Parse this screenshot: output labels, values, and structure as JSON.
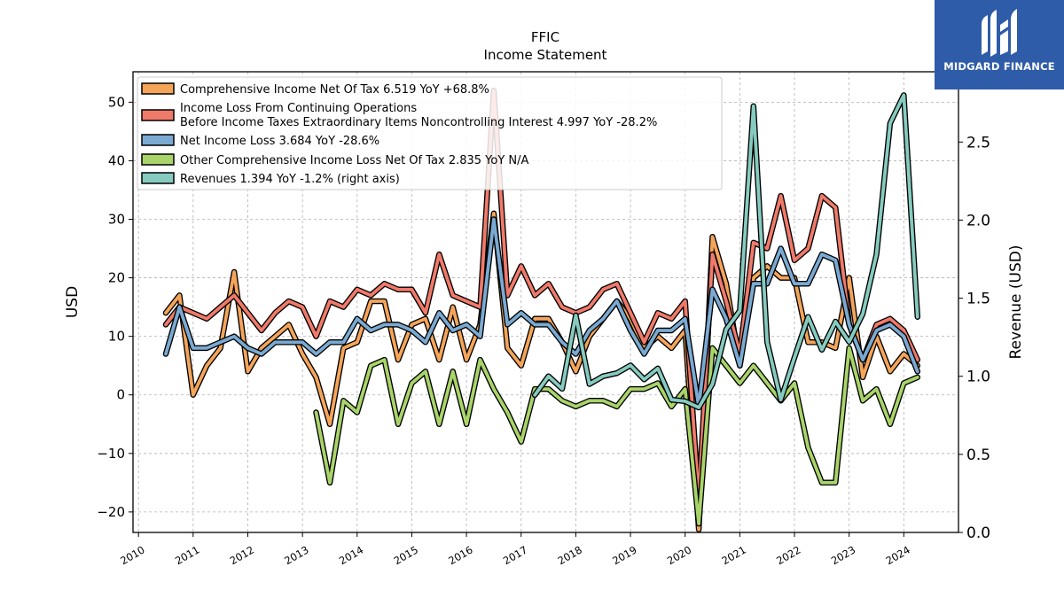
{
  "header": {
    "ticker": "FFIC",
    "subtitle": "Income Statement"
  },
  "brand": {
    "name": "MIDGARD FINANCE",
    "color": "#2f5ca8",
    "icon": "midgard-logo-icon"
  },
  "chart_data": {
    "type": "line",
    "title": "FFIC",
    "subtitle": "Income Statement",
    "ylabel": "USD",
    "y2label": "Revenue (USD)",
    "ylim": [
      -23.5,
      55.2
    ],
    "y2lim": [
      0.0,
      2.95
    ],
    "xlim": [
      2009.9,
      2025.0
    ],
    "grid": true,
    "legend_position": "top-left",
    "yticks": [
      -20,
      -10,
      0,
      10,
      20,
      30,
      40,
      50
    ],
    "ytick_labels": [
      "−20",
      "−10",
      "0",
      "10",
      "20",
      "30",
      "40",
      "50"
    ],
    "y2ticks": [
      0.0,
      0.5,
      1.0,
      1.5,
      2.0,
      2.5
    ],
    "y2tick_labels": [
      "0.0",
      "0.5",
      "1.0",
      "1.5",
      "2.0",
      "2.5"
    ],
    "xticks": [
      2010,
      2011,
      2012,
      2013,
      2014,
      2015,
      2016,
      2017,
      2018,
      2019,
      2020,
      2021,
      2022,
      2023,
      2024
    ],
    "xtick_labels": [
      "2010",
      "2011",
      "2012",
      "2013",
      "2014",
      "2015",
      "2016",
      "2017",
      "2018",
      "2019",
      "2020",
      "2021",
      "2022",
      "2023",
      "2024"
    ],
    "series": [
      {
        "name": "Comprehensive Income Net Of Tax",
        "legend_label": "Comprehensive Income Net Of Tax  6.519 YoY +68.8%",
        "color": "#f5a55a",
        "axis": "left",
        "x": [
          2010.5,
          2010.75,
          2011.0,
          2011.25,
          2011.5,
          2011.75,
          2012.0,
          2012.25,
          2012.5,
          2012.75,
          2013.0,
          2013.25,
          2013.5,
          2013.75,
          2014.0,
          2014.25,
          2014.5,
          2014.75,
          2015.0,
          2015.25,
          2015.5,
          2015.75,
          2016.0,
          2016.25,
          2016.5,
          2016.75,
          2017.0,
          2017.25,
          2017.5,
          2017.75,
          2018.0,
          2018.25,
          2018.5,
          2018.75,
          2019.0,
          2019.25,
          2019.5,
          2019.75,
          2020.0,
          2020.25,
          2020.5,
          2020.75,
          2021.0,
          2021.25,
          2021.5,
          2021.75,
          2022.0,
          2022.25,
          2022.5,
          2022.75,
          2023.0,
          2023.25,
          2023.5,
          2023.75,
          2024.0,
          2024.25
        ],
        "y": [
          14,
          17,
          0,
          5,
          8,
          21,
          4,
          8,
          10,
          12,
          7,
          3,
          -5,
          8,
          9,
          16,
          16,
          6,
          12,
          13,
          6,
          15,
          6,
          12,
          31,
          8,
          5,
          13,
          13,
          9,
          4,
          10,
          13,
          16,
          13,
          8,
          10,
          8,
          11,
          -23,
          27,
          19,
          5,
          20,
          22,
          20,
          20,
          9,
          9,
          8,
          20,
          3,
          10,
          4,
          7,
          5
        ]
      },
      {
        "name": "Income Loss From Continuing Operations Before Income Taxes Extraordinary Items Noncontrolling Interest",
        "legend_label_line1": "Income Loss From Continuing Operations",
        "legend_label_line2": "Before Income Taxes Extraordinary Items Noncontrolling Interest  4.997 YoY -28.2%",
        "color": "#f07a6a",
        "axis": "left",
        "x": [
          2010.5,
          2010.75,
          2011.0,
          2011.25,
          2011.5,
          2011.75,
          2012.0,
          2012.25,
          2012.5,
          2012.75,
          2013.0,
          2013.25,
          2013.5,
          2013.75,
          2014.0,
          2014.25,
          2014.5,
          2014.75,
          2015.0,
          2015.25,
          2015.5,
          2015.75,
          2016.0,
          2016.25,
          2016.5,
          2016.75,
          2017.0,
          2017.25,
          2017.5,
          2017.75,
          2018.0,
          2018.25,
          2018.5,
          2018.75,
          2019.0,
          2019.25,
          2019.5,
          2019.75,
          2020.0,
          2020.25,
          2020.5,
          2020.75,
          2021.0,
          2021.25,
          2021.5,
          2021.75,
          2022.0,
          2022.25,
          2022.5,
          2022.75,
          2023.0,
          2023.25,
          2023.5,
          2023.75,
          2024.0,
          2024.25
        ],
        "y": [
          12,
          15,
          14,
          13,
          15,
          17,
          14,
          11,
          14,
          16,
          15,
          10,
          16,
          15,
          18,
          17,
          19,
          18,
          18,
          14,
          24,
          17,
          16,
          15,
          52,
          17,
          22,
          17,
          19,
          15,
          14,
          15,
          18,
          19,
          14,
          9,
          14,
          13,
          16,
          -18,
          24,
          16,
          7,
          26,
          25,
          34,
          23,
          25,
          34,
          32,
          12,
          6,
          12,
          13,
          11,
          6
        ]
      },
      {
        "name": "Net Income Loss",
        "legend_label": "Net Income Loss  3.684 YoY -28.6%",
        "color": "#7aaad2",
        "axis": "left",
        "x": [
          2010.5,
          2010.75,
          2011.0,
          2011.25,
          2011.5,
          2011.75,
          2012.0,
          2012.25,
          2012.5,
          2012.75,
          2013.0,
          2013.25,
          2013.5,
          2013.75,
          2014.0,
          2014.25,
          2014.5,
          2014.75,
          2015.0,
          2015.25,
          2015.5,
          2015.75,
          2016.0,
          2016.25,
          2016.5,
          2016.75,
          2017.0,
          2017.25,
          2017.5,
          2017.75,
          2018.0,
          2018.25,
          2018.5,
          2018.75,
          2019.0,
          2019.25,
          2019.5,
          2019.75,
          2020.0,
          2020.25,
          2020.5,
          2020.75,
          2021.0,
          2021.25,
          2021.5,
          2021.75,
          2022.0,
          2022.25,
          2022.5,
          2022.75,
          2023.0,
          2023.25,
          2023.5,
          2023.75,
          2024.0,
          2024.25
        ],
        "y": [
          7,
          15,
          8,
          8,
          9,
          10,
          8,
          7,
          9,
          9,
          9,
          7,
          9,
          9,
          13,
          11,
          12,
          12,
          11,
          9,
          14,
          11,
          12,
          10,
          30,
          12,
          14,
          12,
          12,
          9,
          7,
          11,
          13,
          16,
          11,
          7,
          11,
          11,
          13,
          -2,
          18,
          13,
          5,
          19,
          19,
          25,
          19,
          19,
          24,
          23,
          12,
          6,
          11,
          12,
          10,
          4
        ]
      },
      {
        "name": "Other Comprehensive Income Loss Net Of Tax",
        "legend_label": "Other Comprehensive Income Loss Net Of Tax  2.835 YoY N/A",
        "color": "#a9d46a",
        "axis": "left",
        "x": [
          2013.25,
          2013.5,
          2013.75,
          2014.0,
          2014.25,
          2014.5,
          2014.75,
          2015.0,
          2015.25,
          2015.5,
          2015.75,
          2016.0,
          2016.25,
          2016.5,
          2016.75,
          2017.0,
          2017.25,
          2017.5,
          2017.75,
          2018.0,
          2018.25,
          2018.5,
          2018.75,
          2019.0,
          2019.25,
          2019.5,
          2019.75,
          2020.0,
          2020.25,
          2020.5,
          2020.75,
          2021.0,
          2021.25,
          2021.5,
          2021.75,
          2022.0,
          2022.25,
          2022.5,
          2022.75,
          2023.0,
          2023.25,
          2023.5,
          2023.75,
          2024.0,
          2024.25
        ],
        "y": [
          -3,
          -15,
          -1,
          -3,
          5,
          6,
          -5,
          2,
          4,
          -5,
          4,
          -5,
          6,
          1,
          -3,
          -8,
          1,
          1,
          -1,
          -2,
          -1,
          -1,
          -2,
          1,
          1,
          2,
          -2,
          1,
          -22,
          8,
          5,
          2,
          5,
          2,
          -1,
          2,
          -9,
          -15,
          -15,
          8,
          -1,
          1,
          -5,
          2,
          3
        ]
      },
      {
        "name": "Revenues",
        "legend_label": "Revenues  1.394 YoY -1.2% (right axis)",
        "color": "#86cbbf",
        "axis": "right",
        "x": [
          2017.25,
          2017.5,
          2017.75,
          2018.0,
          2018.25,
          2018.5,
          2018.75,
          2019.0,
          2019.25,
          2019.5,
          2019.75,
          2020.0,
          2020.25,
          2020.5,
          2020.75,
          2021.0,
          2021.25,
          2021.5,
          2021.75,
          2022.0,
          2022.25,
          2022.5,
          2022.75,
          2023.0,
          2023.25,
          2023.5,
          2023.75,
          2024.0,
          2024.25
        ],
        "y": [
          0.88,
          1.0,
          0.92,
          1.39,
          0.95,
          1.0,
          1.02,
          1.07,
          0.98,
          1.05,
          0.85,
          0.84,
          0.8,
          0.95,
          1.3,
          1.42,
          2.73,
          1.22,
          0.85,
          1.12,
          1.38,
          1.17,
          1.35,
          1.22,
          1.4,
          1.78,
          2.62,
          2.8,
          1.38
        ]
      }
    ]
  }
}
